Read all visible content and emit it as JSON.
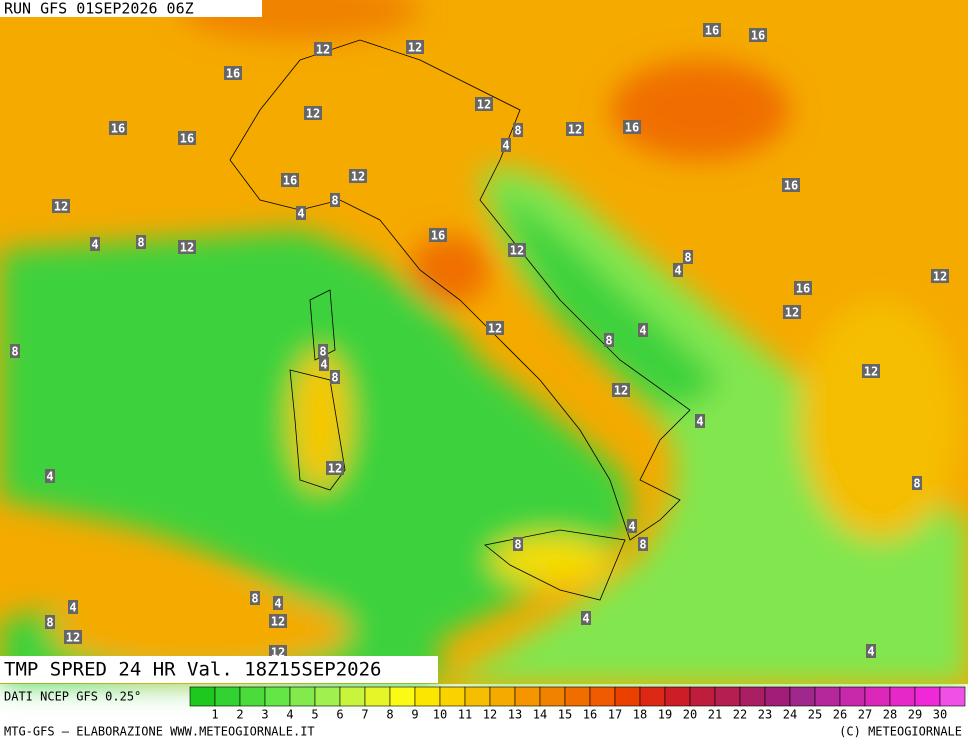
{
  "header": {
    "run": "RUN GFS 01SEP2026 06Z"
  },
  "map": {
    "contour_labels": [
      "12",
      "12",
      "16",
      "16",
      "16",
      "12",
      "12",
      "16",
      "16",
      "8",
      "4",
      "12",
      "16",
      "16",
      "12",
      "16",
      "12",
      "8",
      "4",
      "16",
      "4",
      "8",
      "12",
      "12",
      "8",
      "4",
      "12",
      "16",
      "12",
      "12",
      "4",
      "8",
      "8",
      "8",
      "4",
      "8",
      "12",
      "12",
      "4",
      "12",
      "4",
      "8",
      "4",
      "8",
      "8",
      "8",
      "4",
      "4",
      "8",
      "4",
      "12",
      "12",
      "12",
      "4"
    ]
  },
  "product": {
    "title": "TMP SPRED 24 HR Val. 18Z15SEP2026",
    "source": "DATI NCEP GFS 0.25°"
  },
  "colorbar": {
    "labels": [
      "1",
      "2",
      "3",
      "4",
      "5",
      "6",
      "7",
      "8",
      "9",
      "10",
      "11",
      "12",
      "13",
      "14",
      "15",
      "16",
      "17",
      "18",
      "19",
      "20",
      "21",
      "22",
      "23",
      "24",
      "25",
      "26",
      "27",
      "28",
      "29",
      "30"
    ],
    "colors": [
      "#1ec81e",
      "#32d232",
      "#4bdc3c",
      "#64e646",
      "#82eb4b",
      "#a0f050",
      "#c8f53c",
      "#e6f528",
      "#fafa14",
      "#fae600",
      "#fad200",
      "#f5be00",
      "#f5aa00",
      "#f59600",
      "#f08200",
      "#f06e00",
      "#f05a00",
      "#eb4100",
      "#dc2814",
      "#cd1e28",
      "#be1e3c",
      "#b41e50",
      "#aa1e64",
      "#a01e78",
      "#a0288c",
      "#b4289b",
      "#c828aa",
      "#dc28b9",
      "#e628c8",
      "#f028d7",
      "#f050e6"
    ]
  },
  "footer": {
    "left": "MTG-GFS — ELABORAZIONE WWW.METEOGIORNALE.IT",
    "right": "(C) METEOGIORNALE"
  }
}
